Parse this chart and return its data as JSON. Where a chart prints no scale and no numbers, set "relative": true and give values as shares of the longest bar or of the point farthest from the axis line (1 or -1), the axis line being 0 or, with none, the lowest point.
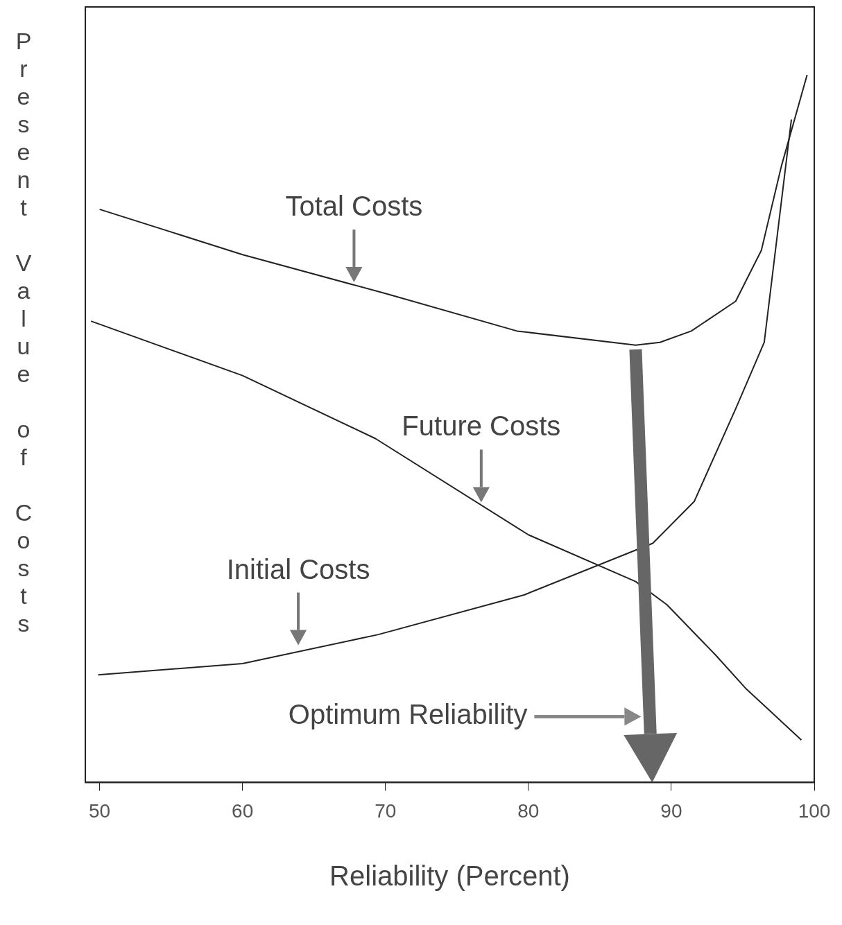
{
  "chart_data": {
    "type": "line",
    "xlabel": "Reliability (Percent)",
    "ylabel": "Present Value of Costs",
    "relative": true,
    "xlim": [
      49,
      100
    ],
    "xticks": [
      50,
      60,
      70,
      80,
      90,
      100
    ],
    "series": [
      {
        "color": "#222222",
        "x": [
          50,
          60,
          70,
          79.2,
          87.5,
          89.2,
          91.4,
          94.5,
          96.3,
          97.7,
          99.5
        ],
        "values": [
          0.81,
          0.746,
          0.691,
          0.638,
          0.618,
          0.622,
          0.638,
          0.68,
          0.752,
          0.871,
          1.0
        ]
      },
      {
        "color": "#222222",
        "x": [
          49.4,
          60,
          69.3,
          80,
          87.5,
          89.7,
          93.1,
          95.2,
          99.1
        ],
        "values": [
          0.652,
          0.575,
          0.486,
          0.35,
          0.284,
          0.251,
          0.18,
          0.133,
          0.06
        ]
      },
      {
        "color": "#222222",
        "x": [
          49.9,
          60,
          69.5,
          79.7,
          88.7,
          91.6,
          94.5,
          96.5,
          98.4
        ],
        "values": [
          0.152,
          0.168,
          0.209,
          0.265,
          0.338,
          0.397,
          0.528,
          0.622,
          0.937
        ]
      }
    ],
    "annotations": [
      {
        "text": "Total Costs",
        "x": 67.8,
        "y": 0.703
      },
      {
        "text": "Future Costs",
        "x": 76.7,
        "y": 0.392
      },
      {
        "text": "Initial Costs",
        "x": 63.9,
        "y": 0.19
      },
      "Optimum Reliability"
    ]
  }
}
